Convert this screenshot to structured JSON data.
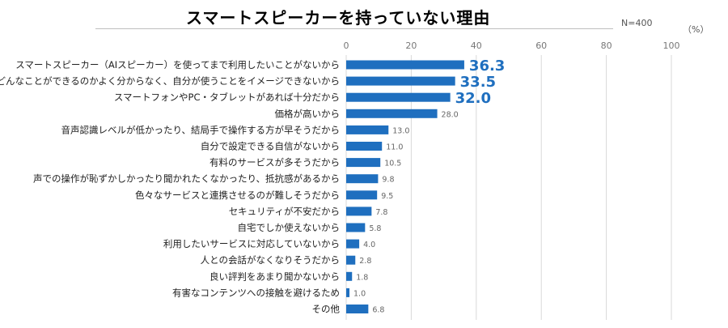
{
  "chart_data": {
    "type": "bar",
    "orientation": "horizontal",
    "title": "スマートスピーカーを持っていない理由",
    "sample_note": "N=400",
    "unit": "（%）",
    "xlim": [
      0,
      100
    ],
    "xticks": [
      0,
      20,
      40,
      60,
      80,
      100
    ],
    "grid": true,
    "bar_color": "#1f6fbf",
    "highlight_label_color": "#1f6fbf",
    "categories": [
      "スマートスピーカー（AIスピーカー）を使ってまで利用したいことがないから",
      "どんなことができるのかよく分からなく、自分が使うことをイメージできないから",
      "スマートフォンやPC・タブレットがあれば十分だから",
      "価格が高いから",
      "音声認識レベルが低かったり、結局手で操作する方が早そうだから",
      "自分で設定できる自信がないから",
      "有料のサービスが多そうだから",
      "声での操作が恥ずかしかったり聞かれたくなかったり、抵抗感があるから",
      "色々なサービスと連携させるのが難しそうだから",
      "セキュリティが不安だから",
      "自宅でしか使えないから",
      "利用したいサービスに対応していないから",
      "人との会話がなくなりそうだから",
      "良い評判をあまり聞かないから",
      "有害なコンテンツへの接触を避けるため",
      "その他"
    ],
    "values": [
      36.3,
      33.5,
      32.0,
      28.0,
      13.0,
      11.0,
      10.5,
      9.8,
      9.5,
      7.8,
      5.8,
      4.0,
      2.8,
      1.8,
      1.0,
      6.8
    ],
    "value_labels": [
      "36.3",
      "33.5",
      "32.0",
      "28.0",
      "13.0",
      "11.0",
      "10.5",
      "9.8",
      "9.5",
      "7.8",
      "5.8",
      "4.0",
      "2.8",
      "1.8",
      "1.0",
      "6.8"
    ],
    "highlighted_count": 3
  }
}
